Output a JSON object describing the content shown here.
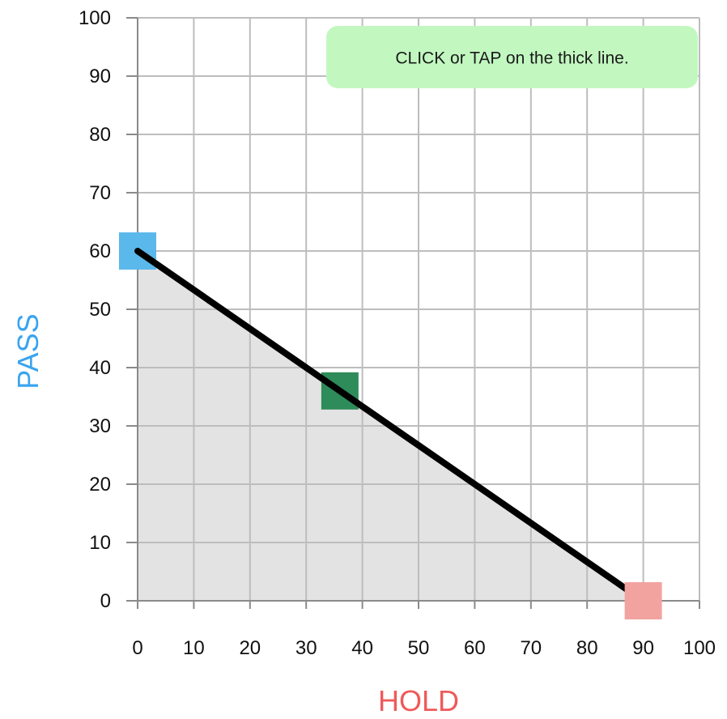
{
  "hint": {
    "text": "CLICK or TAP on the thick line."
  },
  "colors": {
    "grid": "#bdbdbd",
    "axis": "#8a8a8a",
    "region": "#e3e3e3",
    "line": "#000000",
    "hint_bg": "#c2f8c0",
    "pass_label": "#3aa4f0",
    "hold_label": "#ef5a5a",
    "marker_pass": "#5bb8ea",
    "marker_mid": "#2e8b5a",
    "marker_hold": "#f2a3a0"
  },
  "chart_data": {
    "type": "line",
    "xlabel": "HOLD",
    "ylabel": "PASS",
    "xlim": [
      0,
      100
    ],
    "ylim": [
      0,
      100
    ],
    "grid": true,
    "x_ticks": [
      "0",
      "10",
      "20",
      "30",
      "40",
      "50",
      "60",
      "70",
      "80",
      "90",
      "100"
    ],
    "y_ticks": [
      "0",
      "10",
      "20",
      "30",
      "40",
      "50",
      "60",
      "70",
      "80",
      "90",
      "100"
    ],
    "line": {
      "x": [
        0,
        90
      ],
      "y": [
        60,
        0
      ]
    },
    "markers": [
      {
        "name": "pass-marker",
        "x": 0,
        "y": 60
      },
      {
        "name": "mid-marker",
        "x": 36,
        "y": 36
      },
      {
        "name": "hold-marker",
        "x": 90,
        "y": 0
      }
    ]
  }
}
